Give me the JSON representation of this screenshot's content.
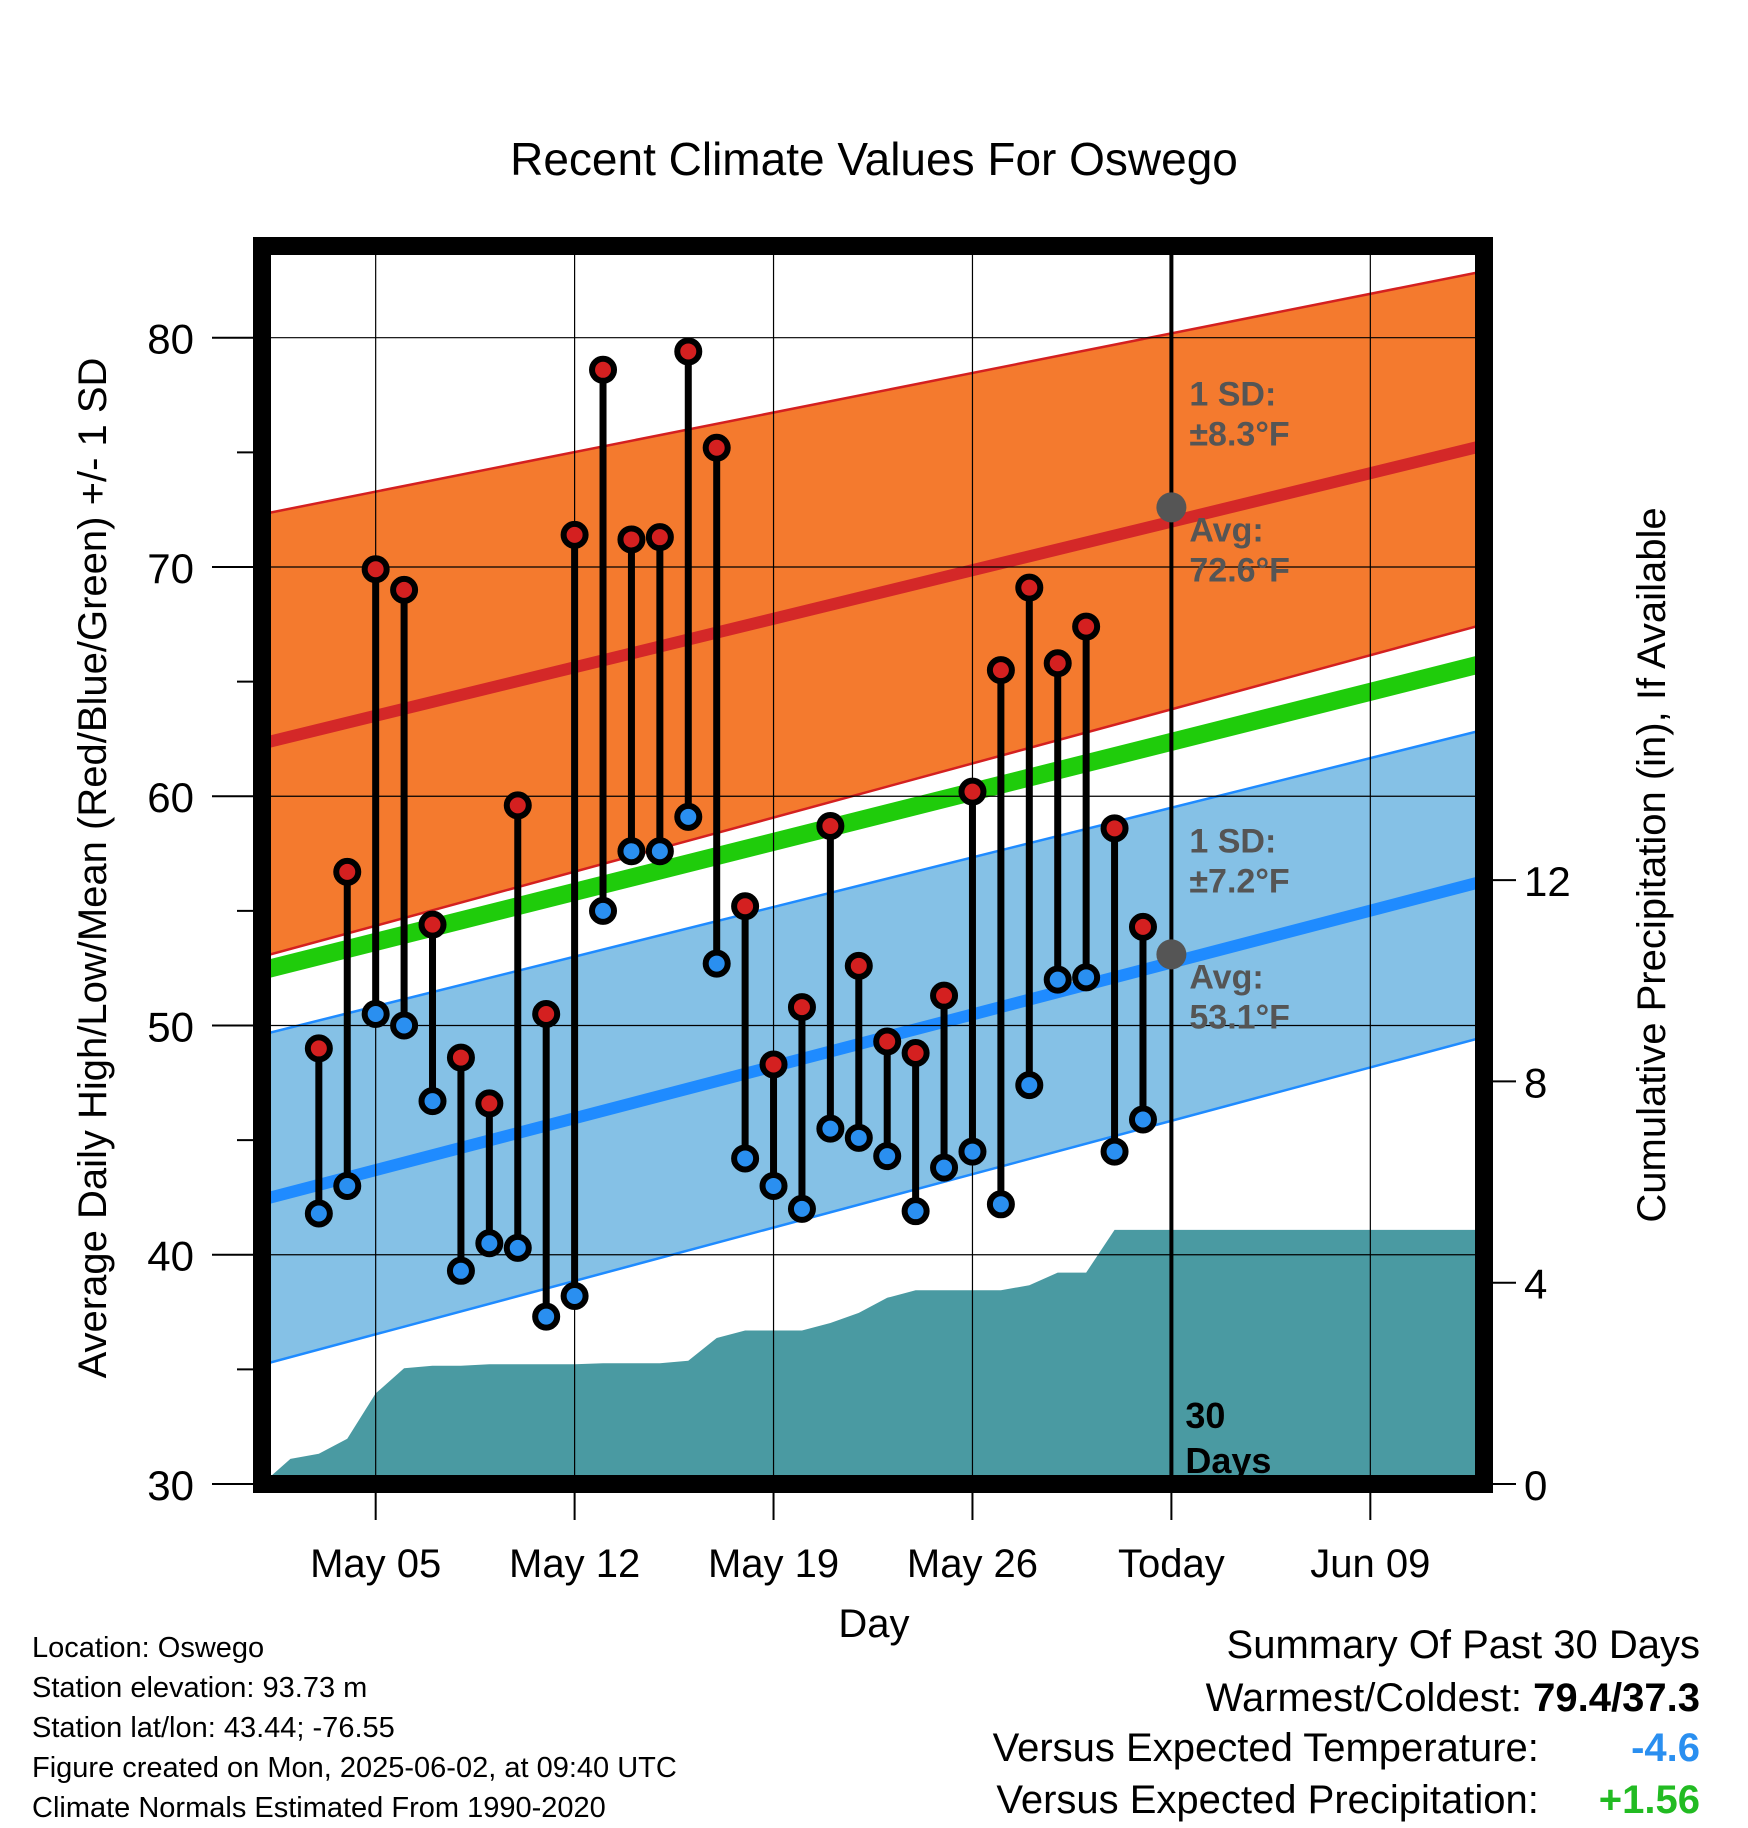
{
  "chart_data": {
    "type": "line",
    "title": "Recent Climate Values For Oswego",
    "xlabel": "Day",
    "ylabel": "Average Daily High/Low/Mean (Red/Blue/Green) +/- 1 SD",
    "y2label": "Cumulative Precipitation (in), If Available",
    "ylim": [
      30,
      84
    ],
    "y2lim": [
      0,
      24.6
    ],
    "yticks": [
      "30",
      "40",
      "50",
      "60",
      "70",
      "80"
    ],
    "y2ticks": [
      "0",
      "4",
      "8",
      "12"
    ],
    "xlim": [
      "2025-05-01",
      "2025-06-13"
    ],
    "xticks": [
      {
        "date": "2025-05-05",
        "label": "May 05"
      },
      {
        "date": "2025-05-12",
        "label": "May 12"
      },
      {
        "date": "2025-05-19",
        "label": "May 19"
      },
      {
        "date": "2025-05-26",
        "label": "May 26"
      },
      {
        "date": "2025-06-02",
        "label": "Today"
      },
      {
        "date": "2025-06-09",
        "label": "Jun 09"
      }
    ],
    "grid": true,
    "colors": {
      "high_band": "#f47a2e",
      "high_band_edge": "#d42020",
      "high_avg": "#d42828",
      "low_band": "#85c1e6",
      "low_band_edge": "#1f8bff",
      "low_avg": "#1f8bff",
      "mean": "#1fcc0b",
      "precip": "#4a9aa2",
      "high_marker": "#d42020",
      "low_marker": "#2a8ff0",
      "annotation": "#555555"
    },
    "normals": {
      "dates": [
        "2025-05-01",
        "2025-06-13"
      ],
      "high_avg": [
        62.3,
        75.3
      ],
      "high_upper": [
        72.3,
        82.9
      ],
      "high_lower": [
        53.0,
        67.5
      ],
      "low_avg": [
        42.4,
        56.3
      ],
      "low_upper": [
        49.6,
        62.9
      ],
      "low_lower": [
        35.2,
        49.5
      ],
      "mean": [
        52.4,
        65.8
      ]
    },
    "high_annotation": {
      "sd_label": "1 SD:",
      "sd_value": "±8.3°F",
      "avg_label": "Avg:",
      "avg_value": "72.6°F",
      "avg": 72.6
    },
    "low_annotation": {
      "sd_label": "1 SD:",
      "sd_value": "±7.2°F",
      "avg_label": "Avg:",
      "avg_value": "53.1°F",
      "avg": 53.1
    },
    "today_label": [
      "30",
      "Days"
    ],
    "daily": {
      "dates": [
        "2025-05-03",
        "2025-05-04",
        "2025-05-05",
        "2025-05-06",
        "2025-05-07",
        "2025-05-08",
        "2025-05-09",
        "2025-05-10",
        "2025-05-11",
        "2025-05-12",
        "2025-05-13",
        "2025-05-14",
        "2025-05-15",
        "2025-05-16",
        "2025-05-17",
        "2025-05-18",
        "2025-05-19",
        "2025-05-20",
        "2025-05-21",
        "2025-05-22",
        "2025-05-23",
        "2025-05-24",
        "2025-05-25",
        "2025-05-26",
        "2025-05-27",
        "2025-05-28",
        "2025-05-29",
        "2025-05-30",
        "2025-05-31",
        "2025-06-01"
      ],
      "highs": [
        49.0,
        56.7,
        69.9,
        69.0,
        54.4,
        48.6,
        46.6,
        59.6,
        50.5,
        71.4,
        78.6,
        71.2,
        71.3,
        79.4,
        75.2,
        55.2,
        48.3,
        50.8,
        58.7,
        52.6,
        49.3,
        48.8,
        51.3,
        60.2,
        65.5,
        69.1,
        65.8,
        67.4,
        58.6,
        54.3
      ],
      "lows": [
        41.8,
        43.0,
        50.5,
        50.0,
        46.7,
        39.3,
        40.5,
        40.3,
        37.3,
        38.2,
        55.0,
        57.6,
        57.6,
        59.1,
        52.7,
        44.2,
        43.0,
        42.0,
        45.5,
        45.1,
        44.3,
        41.9,
        43.8,
        44.5,
        42.2,
        47.4,
        52.0,
        52.1,
        44.5,
        45.9
      ]
    },
    "precip": {
      "dates": [
        "2025-05-01",
        "2025-05-02",
        "2025-05-03",
        "2025-05-04",
        "2025-05-05",
        "2025-05-06",
        "2025-05-07",
        "2025-05-08",
        "2025-05-09",
        "2025-05-10",
        "2025-05-11",
        "2025-05-12",
        "2025-05-13",
        "2025-05-14",
        "2025-05-15",
        "2025-05-16",
        "2025-05-17",
        "2025-05-18",
        "2025-05-19",
        "2025-05-20",
        "2025-05-21",
        "2025-05-22",
        "2025-05-23",
        "2025-05-24",
        "2025-05-25",
        "2025-05-26",
        "2025-05-27",
        "2025-05-28",
        "2025-05-29",
        "2025-05-30",
        "2025-05-31",
        "2025-06-13"
      ],
      "cumulative": [
        0.0,
        0.5,
        0.6,
        0.9,
        1.8,
        2.3,
        2.35,
        2.35,
        2.38,
        2.38,
        2.38,
        2.38,
        2.4,
        2.4,
        2.4,
        2.45,
        2.9,
        3.05,
        3.05,
        3.05,
        3.2,
        3.4,
        3.7,
        3.85,
        3.85,
        3.85,
        3.85,
        3.95,
        4.2,
        4.2,
        5.05,
        5.05
      ]
    }
  },
  "info": {
    "location": "Location: Oswego",
    "elevation": "Station elevation: 93.73 m",
    "latlon": "Station lat/lon: 43.44; -76.55",
    "created": "Figure created on Mon, 2025-06-02, at 09:40 UTC",
    "normals": "Climate Normals Estimated From 1990-2020"
  },
  "summary": {
    "title": "Summary Of Past 30 Days",
    "warmest_label": "Warmest/Coldest:",
    "warmest_value": "79.4/37.3",
    "temp_label": "Versus Expected Temperature:",
    "temp_value": "-4.6",
    "temp_color": "#2a8ff0",
    "precip_label": "Versus Expected Precipitation:",
    "precip_value": "+1.56",
    "precip_color": "#22bb22"
  }
}
